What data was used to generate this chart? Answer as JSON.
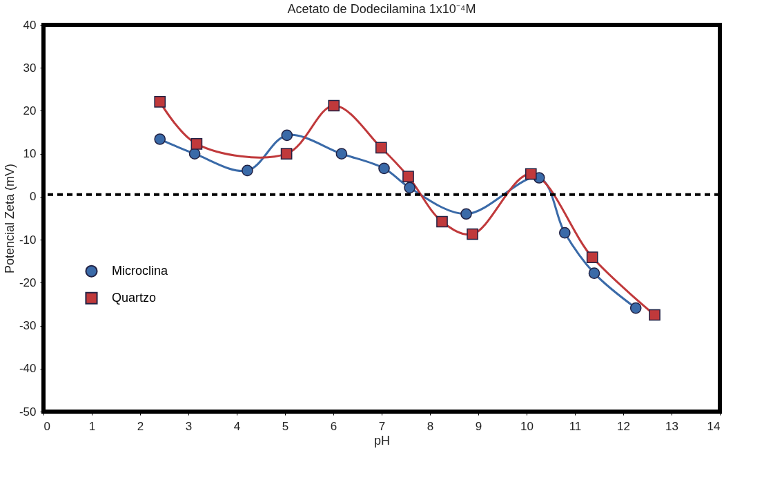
{
  "chart_data": {
    "type": "line",
    "title": "Acetato de Dodecilamina 1x10⁻⁴M",
    "xlabel": "pH",
    "ylabel": "Potencial Zeta (mV)",
    "xlim": [
      0,
      14
    ],
    "xticks": [
      0,
      1,
      2,
      3,
      4,
      5,
      6,
      7,
      8,
      9,
      10,
      11,
      12,
      13,
      14
    ],
    "ylim": [
      -50,
      40
    ],
    "yticks": [
      -50,
      -40,
      -30,
      -20,
      -10,
      0,
      10,
      20,
      30,
      40
    ],
    "grid": false,
    "legend": "left",
    "series": [
      {
        "name": "Microclina",
        "color": "#3a6aa8",
        "marker": "circle",
        "x": [
          2.41,
          3.13,
          4.22,
          5.04,
          6.17,
          7.05,
          7.58,
          8.75,
          10.26,
          10.79,
          11.4,
          12.26
        ],
        "values": [
          13.4,
          10.0,
          6.1,
          14.3,
          10.0,
          6.6,
          2.1,
          -4.0,
          4.4,
          -8.4,
          -17.8,
          -25.9
        ]
      },
      {
        "name": "Quartzo",
        "color": "#c0393b",
        "marker": "square",
        "x": [
          2.41,
          3.17,
          5.03,
          6.01,
          6.99,
          7.55,
          8.25,
          8.88,
          10.09,
          11.36,
          12.65
        ],
        "values": [
          22.1,
          12.3,
          10.0,
          21.2,
          11.4,
          4.7,
          -5.8,
          -8.7,
          5.3,
          -14.1,
          -27.5
        ]
      }
    ],
    "ref_lines": [
      {
        "axis": "y",
        "value": 0.5,
        "color": "#000000",
        "line_style": "dashed"
      }
    ]
  }
}
